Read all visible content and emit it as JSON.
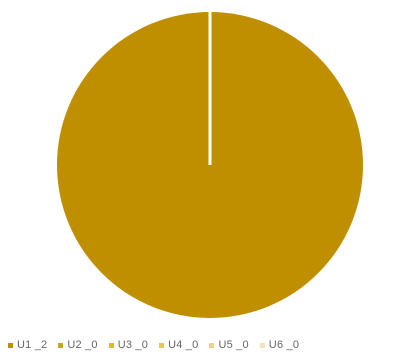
{
  "chart_data": {
    "type": "pie",
    "title": "",
    "slices": [
      {
        "label": "U1 _2",
        "value": 2,
        "color": "#bf8f00"
      },
      {
        "label": "U2 _0",
        "value": 0,
        "color": "#c9a226"
      },
      {
        "label": "U3 _0",
        "value": 0,
        "color": "#e5b52b"
      },
      {
        "label": "U4 _0",
        "value": 0,
        "color": "#f0c35a"
      },
      {
        "label": "U5 _0",
        "value": 0,
        "color": "#f4d08c"
      },
      {
        "label": "U6 _0",
        "value": 0,
        "color": "#f8e2bd"
      }
    ],
    "legend_position": "bottom",
    "slice_border_color": "#ffffff"
  }
}
